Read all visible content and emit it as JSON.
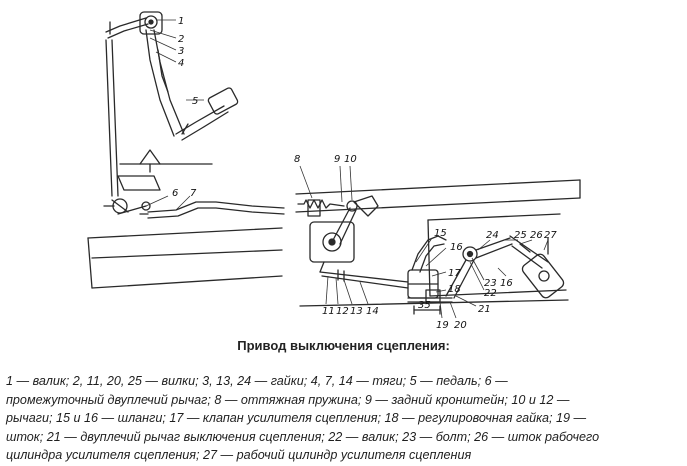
{
  "diagram": {
    "title": "Привод выключения сцепления:",
    "legend_lines": [
      "1 — валик; 2, 11, 20, 25 — вилки; 3, 13, 24 — гайки; 4, 7, 14 — тяги; 5 — педаль; 6 —",
      "промежуточный двуплечий рычаг; 8 — оттяжная пружина; 9 — задний кронштейн; 10 и 12 —",
      "рычаги; 15 и 16 — шланги; 17 — клапан усилителя сцепления; 18 — регулировочная гайка; 19 —",
      "шток; 21 — двуплечий рычаг выключения сцепления; 22 — валик; 23 — болт; 26 — шток рабочего",
      "цилиндра усилителя сцепления; 27 — рабочий цилиндр усилителя сцепления"
    ],
    "callouts": {
      "c1": "1",
      "c2": "2",
      "c3": "3",
      "c4": "4",
      "c5": "5",
      "c6": "6",
      "c7": "7",
      "c8": "8",
      "c9": "9",
      "c10": "10",
      "c11": "11",
      "c12": "12",
      "c13": "13",
      "c14": "14",
      "c15": "15",
      "c16a": "16",
      "c16b": "16",
      "c17": "17",
      "c18": "18",
      "c19": "19",
      "c20": "20",
      "c21": "21",
      "c22": "22",
      "c23": "23",
      "c24": "24",
      "c25": "25",
      "c26": "26",
      "c27": "27"
    }
  }
}
